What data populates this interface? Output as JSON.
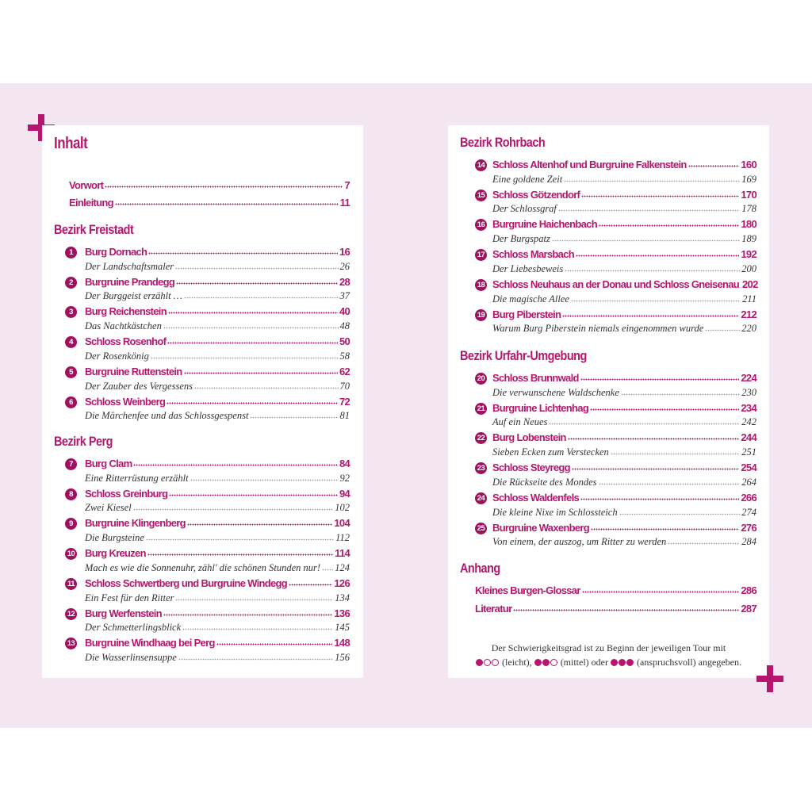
{
  "colors": {
    "accent": "#b5176e",
    "background_band": "#f4e6f0"
  },
  "left": {
    "title": "Inhalt",
    "intro": [
      {
        "label": "Vorwort",
        "page": "7"
      },
      {
        "label": "Einleitung",
        "page": "11"
      }
    ],
    "sections": [
      {
        "heading": "Bezirk Freistadt",
        "entries": [
          {
            "n": "1",
            "title": "Burg Dornach",
            "page": "16",
            "sub": "Der Landschaftsmaler",
            "sub_page": "26"
          },
          {
            "n": "2",
            "title": "Burgruine Prandegg",
            "page": "28",
            "sub": "Der Burggeist erzählt …",
            "sub_page": "37"
          },
          {
            "n": "3",
            "title": "Burg Reichenstein",
            "page": "40",
            "sub": "Das Nachtkästchen",
            "sub_page": "48"
          },
          {
            "n": "4",
            "title": "Schloss Rosenhof",
            "page": "50",
            "sub": "Der Rosenkönig",
            "sub_page": "58"
          },
          {
            "n": "5",
            "title": "Burgruine Ruttenstein",
            "page": "62",
            "sub": "Der Zauber des Vergessens",
            "sub_page": "70"
          },
          {
            "n": "6",
            "title": "Schloss Weinberg",
            "page": "72",
            "sub": "Die Märchenfee und das Schlossgespenst",
            "sub_page": "81"
          }
        ]
      },
      {
        "heading": "Bezirk Perg",
        "entries": [
          {
            "n": "7",
            "title": "Burg Clam",
            "page": "84",
            "sub": "Eine Ritterrüstung erzählt",
            "sub_page": "92"
          },
          {
            "n": "8",
            "title": "Schloss Greinburg",
            "page": "94",
            "sub": "Zwei Kiesel",
            "sub_page": "102"
          },
          {
            "n": "9",
            "title": "Burgruine Klingenberg",
            "page": "104",
            "sub": "Die Burgsteine",
            "sub_page": "112"
          },
          {
            "n": "10",
            "title": "Burg Kreuzen",
            "page": "114",
            "sub": "Mach es wie die Sonnenuhr, zähl' die schönen Stunden nur!",
            "sub_page": "124"
          },
          {
            "n": "11",
            "title": "Schloss Schwertberg und Burgruine Windegg",
            "page": "126",
            "sub": "Ein Fest für den Ritter",
            "sub_page": "134"
          },
          {
            "n": "12",
            "title": "Burg Werfenstein",
            "page": "136",
            "sub": "Der Schmetterlingsblick",
            "sub_page": "145"
          },
          {
            "n": "13",
            "title": "Burgruine Windhaag bei Perg",
            "page": "148",
            "sub": "Die Wasserlinsensuppe",
            "sub_page": "156"
          }
        ]
      }
    ]
  },
  "right": {
    "sections": [
      {
        "heading": "Bezirk Rohrbach",
        "entries": [
          {
            "n": "14",
            "title": "Schloss Altenhof und Burgruine Falkenstein",
            "page": "160",
            "sub": "Eine goldene Zeit",
            "sub_page": "169"
          },
          {
            "n": "15",
            "title": "Schloss Götzendorf",
            "page": "170",
            "sub": "Der Schlossgraf",
            "sub_page": "178"
          },
          {
            "n": "16",
            "title": "Burgruine Haichenbach",
            "page": "180",
            "sub": "Der Burgspatz",
            "sub_page": "189"
          },
          {
            "n": "17",
            "title": "Schloss Marsbach",
            "page": "192",
            "sub": "Der Liebesbeweis",
            "sub_page": "200"
          },
          {
            "n": "18",
            "title": "Schloss Neuhaus an der Donau und Schloss Gneisenau",
            "page": "202",
            "sub": "Die magische Allee",
            "sub_page": "211"
          },
          {
            "n": "19",
            "title": "Burg Piberstein",
            "page": "212",
            "sub": "Warum Burg Piberstein niemals eingenommen wurde",
            "sub_page": "220"
          }
        ]
      },
      {
        "heading": "Bezirk Urfahr-Umgebung",
        "entries": [
          {
            "n": "20",
            "title": "Schloss Brunnwald",
            "page": "224",
            "sub": "Die verwunschene Waldschenke",
            "sub_page": "230"
          },
          {
            "n": "21",
            "title": "Burgruine Lichtenhag",
            "page": "234",
            "sub": "Auf ein Neues",
            "sub_page": "242"
          },
          {
            "n": "22",
            "title": "Burg Lobenstein",
            "page": "244",
            "sub": "Sieben Ecken zum Verstecken",
            "sub_page": "251"
          },
          {
            "n": "23",
            "title": "Schloss Steyregg",
            "page": "254",
            "sub": "Die Rückseite des Mondes",
            "sub_page": "264"
          },
          {
            "n": "24",
            "title": "Schloss Waldenfels",
            "page": "266",
            "sub": "Die kleine Nixe im Schlossteich",
            "sub_page": "274"
          },
          {
            "n": "25",
            "title": "Burgruine Waxenberg",
            "page": "276",
            "sub": "Von einem, der auszog, um Ritter zu werden",
            "sub_page": "284"
          }
        ]
      }
    ],
    "appendix": {
      "heading": "Anhang",
      "items": [
        {
          "label": "Kleines Burgen-Glossar",
          "page": "286"
        },
        {
          "label": "Literatur",
          "page": "287"
        }
      ]
    },
    "note": {
      "line1": "Der Schwierigkeitsgrad ist zu Beginn der jeweiligen Tour mit",
      "easy": "(leicht),",
      "medium": "(mittel) oder",
      "hard": "(anspruchsvoll) angegeben.",
      "levels": {
        "easy": 1,
        "medium": 2,
        "hard": 3,
        "max": 3
      }
    }
  }
}
